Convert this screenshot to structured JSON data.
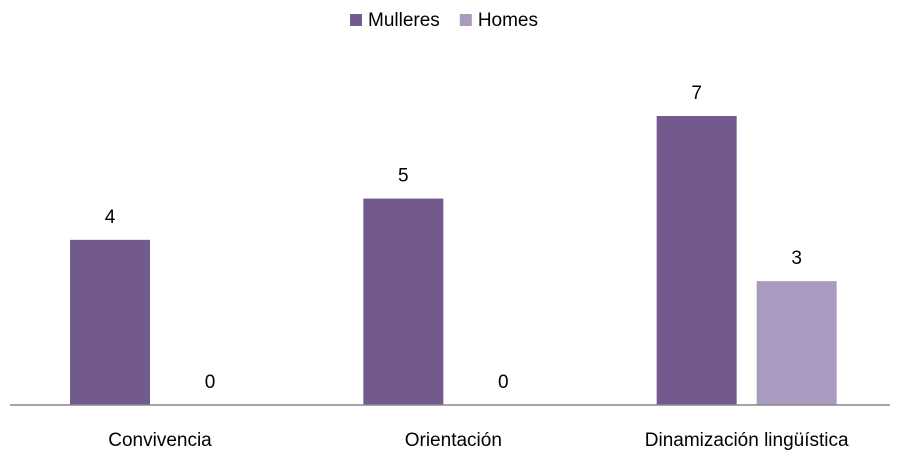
{
  "chart_data": {
    "type": "bar",
    "categories": [
      "Convivencia",
      "Orientación",
      "Dinamización lingüística"
    ],
    "series": [
      {
        "name": "Mulleres",
        "color": "#725a8e",
        "values": [
          4,
          5,
          7
        ]
      },
      {
        "name": "Homes",
        "color": "#a99bbf",
        "values": [
          0,
          0,
          3
        ]
      }
    ],
    "legend": "top"
  }
}
